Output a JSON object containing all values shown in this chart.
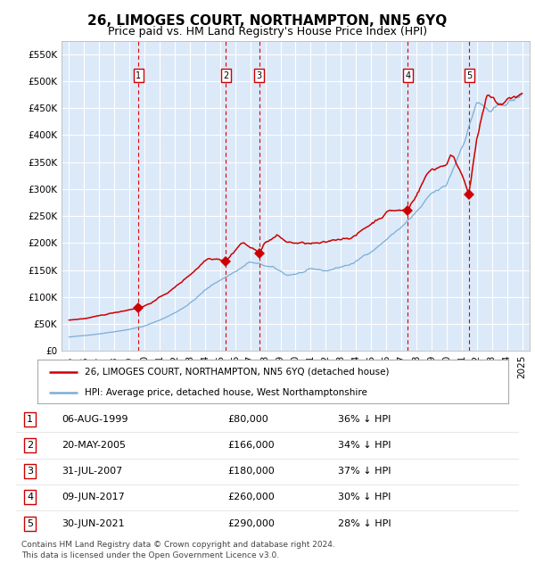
{
  "title": "26, LIMOGES COURT, NORTHAMPTON, NN5 6YQ",
  "subtitle": "Price paid vs. HM Land Registry's House Price Index (HPI)",
  "xlim": [
    1994.5,
    2025.5
  ],
  "ylim": [
    0,
    575000
  ],
  "yticks": [
    0,
    50000,
    100000,
    150000,
    200000,
    250000,
    300000,
    350000,
    400000,
    450000,
    500000,
    550000
  ],
  "ytick_labels": [
    "£0",
    "£50K",
    "£100K",
    "£150K",
    "£200K",
    "£250K",
    "£300K",
    "£350K",
    "£400K",
    "£450K",
    "£500K",
    "£550K"
  ],
  "xticks": [
    1995,
    1996,
    1997,
    1998,
    1999,
    2000,
    2001,
    2002,
    2003,
    2004,
    2005,
    2006,
    2007,
    2008,
    2009,
    2010,
    2011,
    2012,
    2013,
    2014,
    2015,
    2016,
    2017,
    2018,
    2019,
    2020,
    2021,
    2022,
    2023,
    2024,
    2025
  ],
  "background_color": "#dce9f8",
  "grid_color": "#ffffff",
  "red_line_color": "#cc0000",
  "blue_line_color": "#7aaed6",
  "sale_marker_color": "#cc0000",
  "vline_color": "#dd0000",
  "number_box_color": "#cc0000",
  "sales": [
    {
      "num": 1,
      "year": 1999.58,
      "price": 80000,
      "date": "06-AUG-1999",
      "pct": "36%"
    },
    {
      "num": 2,
      "year": 2005.38,
      "price": 166000,
      "date": "20-MAY-2005",
      "pct": "34%"
    },
    {
      "num": 3,
      "year": 2007.58,
      "price": 180000,
      "date": "31-JUL-2007",
      "pct": "37%"
    },
    {
      "num": 4,
      "year": 2017.43,
      "price": 260000,
      "date": "09-JUN-2017",
      "pct": "30%"
    },
    {
      "num": 5,
      "year": 2021.49,
      "price": 290000,
      "date": "30-JUN-2021",
      "pct": "28%"
    }
  ],
  "legend_line1": "26, LIMOGES COURT, NORTHAMPTON, NN5 6YQ (detached house)",
  "legend_line2": "HPI: Average price, detached house, West Northamptonshire",
  "footer": "Contains HM Land Registry data © Crown copyright and database right 2024.\nThis data is licensed under the Open Government Licence v3.0.",
  "title_fontsize": 11,
  "subtitle_fontsize": 9,
  "tick_fontsize": 7.5
}
